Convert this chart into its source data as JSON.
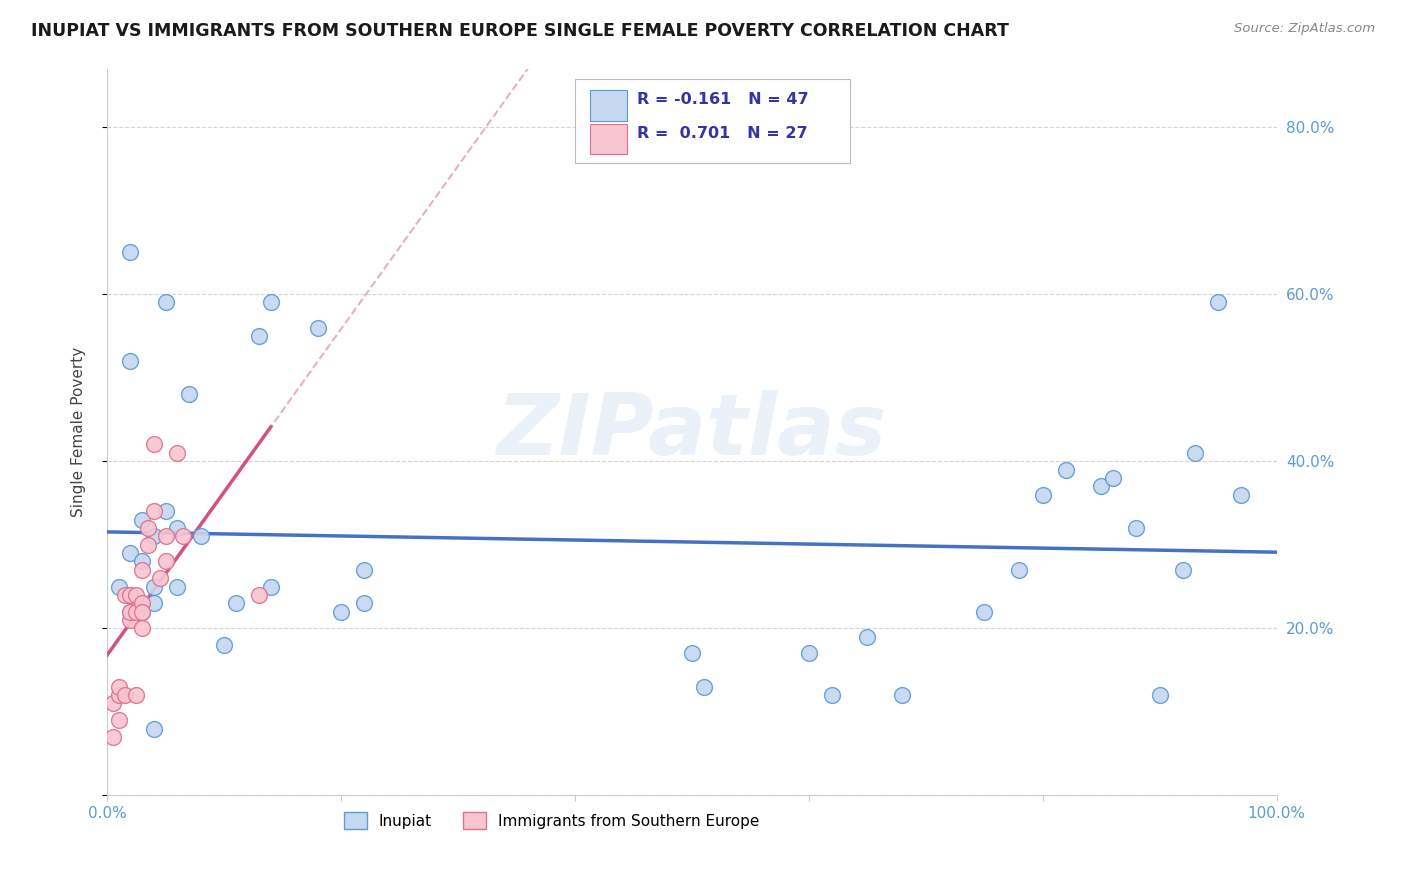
{
  "title": "INUPIAT VS IMMIGRANTS FROM SOUTHERN EUROPE SINGLE FEMALE POVERTY CORRELATION CHART",
  "source": "Source: ZipAtlas.com",
  "ylabel": "Single Female Poverty",
  "watermark": "ZIPatlas",
  "xlim": [
    0,
    1.0
  ],
  "ylim": [
    0,
    0.87
  ],
  "R1": "-0.161",
  "N1": "47",
  "R2": "0.701",
  "N2": "27",
  "inupiat_color": "#c5d8f0",
  "immigrant_color": "#f7c5d0",
  "inupiat_edge_color": "#5b9bd5",
  "immigrant_edge_color": "#e07090",
  "inupiat_line_color": "#4472C4",
  "immigrant_line_color": "#d45080",
  "immigrant_dash_color": "#e8b0c0",
  "inupiat_x": [
    0.01,
    0.02,
    0.02,
    0.02,
    0.02,
    0.02,
    0.03,
    0.03,
    0.03,
    0.03,
    0.04,
    0.04,
    0.04,
    0.04,
    0.05,
    0.05,
    0.06,
    0.06,
    0.07,
    0.08,
    0.1,
    0.11,
    0.13,
    0.14,
    0.14,
    0.18,
    0.2,
    0.22,
    0.22,
    0.5,
    0.51,
    0.6,
    0.62,
    0.65,
    0.68,
    0.75,
    0.78,
    0.8,
    0.82,
    0.85,
    0.86,
    0.88,
    0.9,
    0.92,
    0.93,
    0.95,
    0.97
  ],
  "inupiat_y": [
    0.25,
    0.65,
    0.52,
    0.29,
    0.24,
    0.22,
    0.33,
    0.28,
    0.23,
    0.22,
    0.31,
    0.25,
    0.23,
    0.08,
    0.59,
    0.34,
    0.32,
    0.25,
    0.48,
    0.31,
    0.18,
    0.23,
    0.55,
    0.25,
    0.59,
    0.56,
    0.22,
    0.23,
    0.27,
    0.17,
    0.13,
    0.17,
    0.12,
    0.19,
    0.12,
    0.22,
    0.27,
    0.36,
    0.39,
    0.37,
    0.38,
    0.32,
    0.12,
    0.27,
    0.41,
    0.59,
    0.36
  ],
  "immigrant_x": [
    0.005,
    0.005,
    0.01,
    0.01,
    0.01,
    0.015,
    0.015,
    0.02,
    0.02,
    0.02,
    0.025,
    0.025,
    0.025,
    0.03,
    0.03,
    0.03,
    0.03,
    0.035,
    0.035,
    0.04,
    0.04,
    0.045,
    0.05,
    0.05,
    0.06,
    0.065,
    0.13
  ],
  "immigrant_y": [
    0.11,
    0.07,
    0.12,
    0.09,
    0.13,
    0.12,
    0.24,
    0.21,
    0.22,
    0.24,
    0.12,
    0.22,
    0.24,
    0.2,
    0.23,
    0.22,
    0.27,
    0.3,
    0.32,
    0.34,
    0.42,
    0.26,
    0.28,
    0.31,
    0.41,
    0.31,
    0.24
  ],
  "background_color": "#ffffff",
  "grid_color": "#d0d0d0"
}
